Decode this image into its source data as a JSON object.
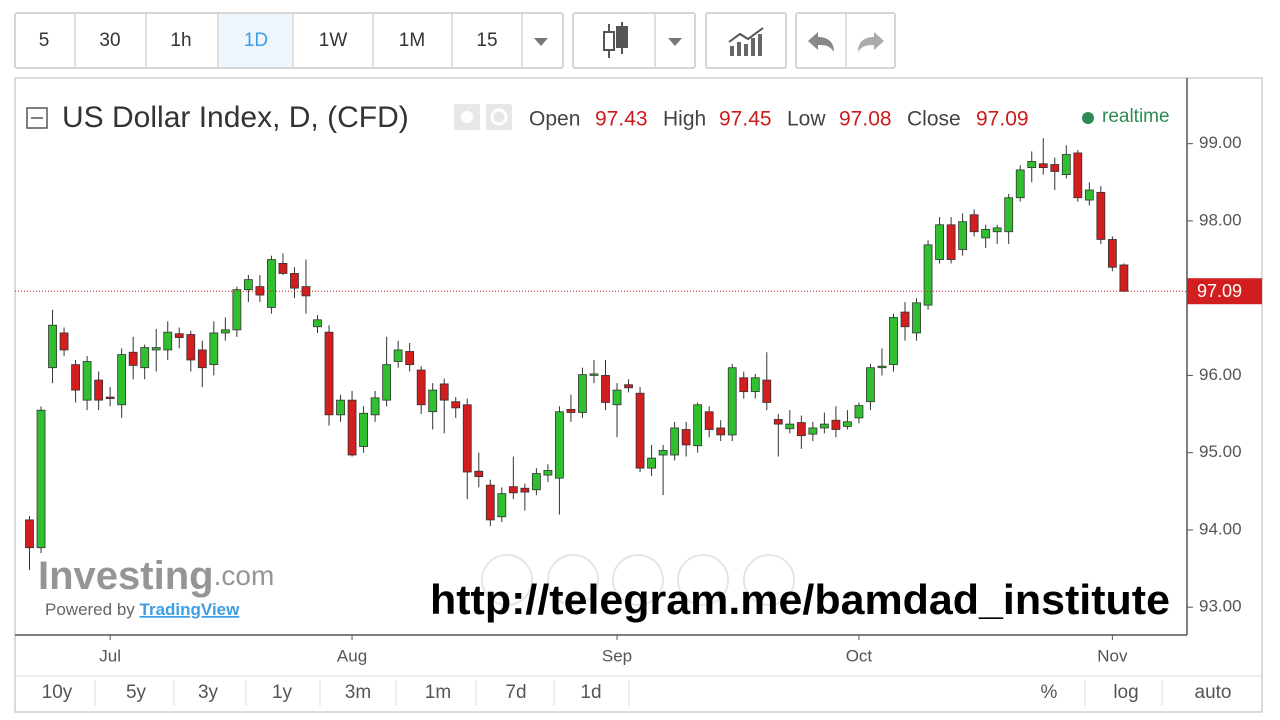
{
  "toolbar": {
    "intervals": [
      "5",
      "30",
      "1h",
      "1D",
      "1W",
      "1M",
      "15"
    ],
    "active_interval": "1D"
  },
  "chart_data": {
    "type": "candlestick",
    "title": "US Dollar Index, D, (CFD)",
    "ohlc_labels": [
      "Open",
      "High",
      "Low",
      "Close"
    ],
    "status": "realtime",
    "up_color": "#2fbf2f",
    "down_color": "#d21e1e",
    "categories": [
      null,
      null,
      null,
      null,
      null,
      null,
      null,
      "Jul",
      null,
      null,
      null,
      null,
      null,
      null,
      null,
      null,
      null,
      null,
      null,
      null,
      null,
      null,
      null,
      null,
      null,
      null,
      null,
      null,
      "Aug",
      null,
      null,
      null,
      null,
      null,
      null,
      null,
      null,
      null,
      null,
      null,
      null,
      null,
      null,
      null,
      null,
      null,
      null,
      null,
      null,
      null,
      null,
      "Sep",
      null,
      null,
      null,
      null,
      null,
      null,
      null,
      null,
      null,
      null,
      null,
      null,
      null,
      null,
      null,
      null,
      null,
      null,
      null,
      null,
      "Oct",
      null,
      null,
      null,
      null,
      null,
      null,
      null,
      null,
      null,
      null,
      null,
      null,
      null,
      null,
      null,
      null,
      null,
      null,
      null,
      null,
      null,
      "Nov",
      null
    ],
    "open": [
      94.13,
      93.77,
      96.1,
      96.55,
      96.14,
      95.68,
      95.94,
      95.72,
      95.62,
      96.3,
      96.1,
      96.33,
      96.33,
      96.54,
      96.53,
      96.33,
      96.14,
      96.55,
      96.59,
      97.11,
      97.15,
      96.88,
      97.45,
      97.32,
      97.15,
      96.63,
      96.56,
      95.49,
      95.68,
      95.08,
      95.49,
      95.68,
      96.18,
      96.31,
      96.07,
      95.53,
      95.89,
      95.66,
      95.62,
      94.76,
      94.58,
      94.17,
      94.56,
      94.54,
      94.52,
      94.71,
      94.67,
      95.56,
      95.52,
      96.0,
      96.0,
      95.62,
      95.88,
      95.77,
      94.8,
      94.97,
      94.97,
      95.3,
      95.09,
      95.53,
      95.32,
      95.23,
      95.97,
      95.79,
      95.94,
      95.43,
      95.31,
      95.39,
      95.24,
      95.32,
      95.42,
      95.34,
      95.45,
      95.66,
      96.1,
      96.14,
      96.82,
      96.55,
      96.91,
      97.5,
      97.95,
      97.63,
      98.08,
      97.78,
      97.86,
      97.86,
      98.3,
      98.69,
      98.74,
      98.73,
      98.6,
      98.88,
      98.27,
      98.37,
      97.76,
      97.43
    ],
    "high": [
      94.18,
      95.6,
      96.85,
      96.62,
      96.2,
      96.25,
      96.05,
      95.85,
      96.35,
      96.5,
      96.4,
      96.6,
      96.7,
      96.62,
      96.58,
      96.45,
      96.7,
      96.75,
      97.15,
      97.3,
      97.3,
      97.55,
      97.58,
      97.4,
      97.5,
      96.78,
      96.65,
      95.75,
      95.8,
      95.6,
      95.8,
      96.5,
      96.45,
      96.42,
      96.12,
      95.9,
      95.96,
      95.72,
      95.7,
      95.0,
      94.65,
      94.55,
      94.95,
      94.6,
      94.8,
      94.85,
      95.6,
      95.75,
      96.1,
      96.2,
      96.2,
      95.9,
      95.95,
      95.85,
      95.1,
      95.1,
      95.4,
      95.4,
      95.65,
      95.6,
      95.42,
      96.15,
      96.05,
      96.02,
      96.3,
      95.5,
      95.55,
      95.48,
      95.4,
      95.52,
      95.6,
      95.55,
      95.65,
      96.15,
      96.35,
      96.8,
      96.95,
      97.0,
      97.75,
      98.05,
      98.05,
      98.1,
      98.15,
      97.95,
      97.95,
      98.35,
      98.72,
      98.9,
      99.07,
      98.82,
      98.98,
      98.92,
      98.5,
      98.45,
      97.8,
      97.45
    ],
    "low": [
      93.48,
      93.7,
      95.9,
      96.25,
      95.65,
      95.55,
      95.55,
      95.6,
      95.45,
      95.95,
      95.95,
      96.05,
      96.2,
      96.35,
      96.05,
      95.85,
      96.0,
      96.45,
      96.5,
      96.95,
      96.95,
      96.8,
      97.3,
      97.0,
      96.8,
      96.55,
      95.35,
      95.4,
      94.95,
      95.0,
      95.4,
      95.6,
      96.1,
      96.05,
      95.5,
      95.3,
      95.25,
      95.45,
      94.4,
      94.55,
      94.05,
      94.1,
      94.4,
      94.25,
      94.45,
      94.62,
      94.2,
      95.4,
      95.45,
      95.9,
      95.55,
      95.2,
      95.78,
      94.75,
      94.7,
      94.45,
      94.9,
      94.95,
      95.0,
      95.2,
      95.15,
      95.15,
      95.7,
      95.7,
      95.55,
      94.95,
      95.25,
      95.05,
      95.15,
      95.25,
      95.2,
      95.3,
      95.38,
      95.55,
      96.0,
      96.05,
      96.45,
      96.45,
      96.85,
      97.45,
      97.45,
      97.55,
      97.8,
      97.65,
      97.7,
      97.7,
      98.25,
      98.5,
      98.6,
      98.4,
      98.55,
      98.25,
      98.2,
      97.7,
      97.35,
      97.08
    ],
    "close": [
      93.77,
      95.55,
      96.65,
      96.33,
      95.81,
      96.18,
      95.68,
      95.7,
      96.27,
      96.13,
      96.36,
      96.36,
      96.56,
      96.49,
      96.2,
      96.1,
      96.55,
      96.59,
      97.11,
      97.24,
      97.04,
      97.5,
      97.32,
      97.13,
      97.03,
      96.72,
      95.49,
      95.68,
      94.97,
      95.51,
      95.71,
      96.14,
      96.33,
      96.14,
      95.62,
      95.81,
      95.68,
      95.58,
      94.75,
      94.69,
      94.13,
      94.47,
      94.48,
      94.49,
      94.73,
      94.77,
      95.53,
      95.52,
      96.01,
      96.02,
      95.65,
      95.81,
      95.84,
      94.8,
      94.93,
      95.03,
      95.32,
      95.1,
      95.62,
      95.3,
      95.23,
      96.1,
      95.79,
      95.97,
      95.65,
      95.37,
      95.37,
      95.22,
      95.32,
      95.37,
      95.3,
      95.4,
      95.61,
      96.1,
      96.12,
      96.75,
      96.63,
      96.94,
      97.69,
      97.95,
      97.5,
      97.99,
      97.86,
      97.89,
      97.91,
      98.3,
      98.66,
      98.77,
      98.69,
      98.64,
      98.86,
      98.3,
      98.4,
      97.76,
      97.4,
      97.09
    ],
    "ylim": [
      92.64,
      99.85
    ],
    "yticks": [
      {
        "value": 93,
        "label": "93.00"
      },
      {
        "value": 94,
        "label": "94.00"
      },
      {
        "value": 95,
        "label": "95.00"
      },
      {
        "value": 96,
        "label": "96.00"
      },
      {
        "value": 97,
        "label": "97.00"
      },
      {
        "value": 98,
        "label": "98.00"
      },
      {
        "value": 99,
        "label": "99.00"
      }
    ],
    "grid": false
  },
  "watermark": {
    "brand": "Investing",
    "brand_suffix": ".com",
    "powered_by": "Powered by",
    "powered_link": "TradingView",
    "overlay": "http://telegram.me/bamdad_institute"
  },
  "footer": {
    "ranges": [
      "10y",
      "5y",
      "3y",
      "1y",
      "3m",
      "1m",
      "7d",
      "1d"
    ],
    "scale_options": [
      "%",
      "log",
      "auto"
    ],
    "active_scale": "auto"
  }
}
